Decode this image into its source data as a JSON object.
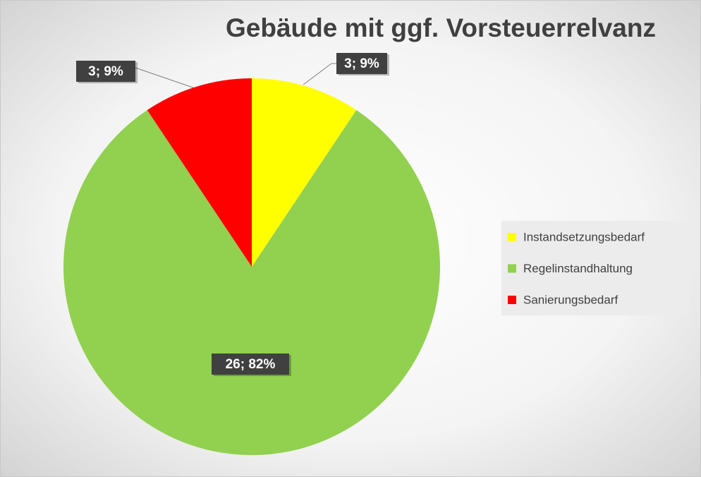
{
  "chart_data": {
    "type": "pie",
    "title": "Gebäude mit ggf. Vorsteuerrelvanz",
    "categories": [
      "Instandsetzungsbedarf",
      "Regelinstandhaltung",
      "Sanierungsbedarf"
    ],
    "values": [
      3,
      26,
      3
    ],
    "value_labels": [
      "3; 9%",
      "26; 82%",
      "3; 9%"
    ],
    "colors": [
      "#ffff00",
      "#92d050",
      "#ff0000"
    ],
    "legend": "right"
  }
}
